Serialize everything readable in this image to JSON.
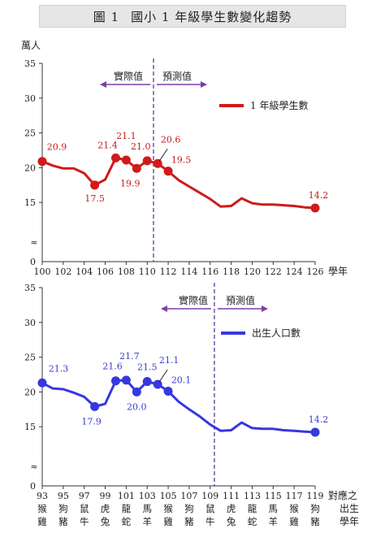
{
  "figure": {
    "number": "圖 1",
    "title": "國小 1 年級學生數變化趨勢"
  },
  "colors": {
    "red": "#d11a1a",
    "blue": "#3737e0",
    "divider": "#5b3a9a",
    "arrow": "#7a3fa8"
  },
  "chart_data": [
    {
      "type": "line",
      "ylabel": "萬人",
      "xlabel": "學年",
      "ylim": [
        10,
        35
      ],
      "yticks": [
        15,
        20,
        25,
        30,
        35
      ],
      "axis_break_symbol": "≈",
      "y_zero_label": "0",
      "xlim": [
        100,
        126
      ],
      "xticks": [
        100,
        102,
        104,
        106,
        108,
        110,
        112,
        114,
        116,
        118,
        120,
        122,
        124,
        126
      ],
      "divider_x": 110.6,
      "annotations": {
        "actual": "實際值",
        "forecast": "預測值"
      },
      "legend": {
        "label": "1 年級學生數",
        "position": "top-right"
      },
      "series": [
        {
          "name": "1 年級學生數",
          "x": [
            100,
            101,
            102,
            103,
            104,
            105,
            106,
            107,
            108,
            109,
            110,
            111,
            112,
            113,
            114,
            115,
            116,
            117,
            118,
            119,
            120,
            121,
            122,
            123,
            124,
            125,
            126
          ],
          "values": [
            20.9,
            20.3,
            19.9,
            19.9,
            19.2,
            17.5,
            18.3,
            21.4,
            21.1,
            19.9,
            21.0,
            20.6,
            19.5,
            18.2,
            17.3,
            16.4,
            15.5,
            14.4,
            14.5,
            15.6,
            14.9,
            14.7,
            14.7,
            14.6,
            14.5,
            14.3,
            14.2
          ],
          "markers": [
            100,
            105,
            107,
            108,
            109,
            110,
            111,
            112,
            126
          ],
          "labels": [
            {
              "x": 100,
              "text": "20.9"
            },
            {
              "x": 105,
              "text": "17.5"
            },
            {
              "x": 107,
              "text": "21.4"
            },
            {
              "x": 108,
              "text": "21.1"
            },
            {
              "x": 109,
              "text": "19.9"
            },
            {
              "x": 110,
              "text": "21.0"
            },
            {
              "x": 111,
              "text": "20.6"
            },
            {
              "x": 112,
              "text": "19.5"
            },
            {
              "x": 126,
              "text": "14.2"
            }
          ]
        }
      ]
    },
    {
      "type": "line",
      "ylabel": "",
      "xlabel": "對應之出生學年",
      "ylim": [
        10,
        35
      ],
      "yticks": [
        15,
        20,
        25,
        30,
        35
      ],
      "axis_break_symbol": "≈",
      "y_zero_label": "0",
      "xlim": [
        93,
        119
      ],
      "xticks": [
        93,
        95,
        97,
        99,
        101,
        103,
        105,
        107,
        109,
        111,
        113,
        115,
        117,
        119
      ],
      "zodiac": [
        [
          "猴",
          "雞"
        ],
        [
          "狗",
          "豬"
        ],
        [
          "鼠",
          "牛"
        ],
        [
          "虎",
          "兔"
        ],
        [
          "龍",
          "蛇"
        ],
        [
          "馬",
          "羊"
        ],
        [
          "猴",
          "雞"
        ],
        [
          "狗",
          "豬"
        ],
        [
          "鼠",
          "牛"
        ],
        [
          "虎",
          "兔"
        ],
        [
          "龍",
          "蛇"
        ],
        [
          "馬",
          "羊"
        ],
        [
          "猴",
          "雞"
        ],
        [
          "狗",
          "豬"
        ]
      ],
      "divider_x": 109.4,
      "annotations": {
        "actual": "實際值",
        "forecast": "預測值"
      },
      "legend": {
        "label": "出生人口數",
        "position": "top-right"
      },
      "series": [
        {
          "name": "出生人口數",
          "x": [
            93,
            94,
            95,
            96,
            97,
            98,
            99,
            100,
            101,
            102,
            103,
            104,
            105,
            106,
            107,
            108,
            109,
            110,
            111,
            112,
            113,
            114,
            115,
            116,
            117,
            118,
            119
          ],
          "values": [
            21.3,
            20.5,
            20.4,
            19.9,
            19.3,
            17.9,
            18.3,
            21.6,
            21.7,
            20.0,
            21.5,
            21.1,
            20.1,
            18.6,
            17.5,
            16.5,
            15.3,
            14.4,
            14.5,
            15.6,
            14.8,
            14.7,
            14.7,
            14.5,
            14.4,
            14.3,
            14.2
          ],
          "markers": [
            93,
            98,
            100,
            101,
            102,
            103,
            104,
            105,
            119
          ],
          "labels": [
            {
              "x": 93,
              "text": "21.3"
            },
            {
              "x": 98,
              "text": "17.9"
            },
            {
              "x": 100,
              "text": "21.6"
            },
            {
              "x": 101,
              "text": "21.7"
            },
            {
              "x": 102,
              "text": "20.0"
            },
            {
              "x": 103,
              "text": "21.5"
            },
            {
              "x": 104,
              "text": "21.1"
            },
            {
              "x": 105,
              "text": "20.1"
            },
            {
              "x": 119,
              "text": "14.2"
            }
          ]
        }
      ]
    }
  ]
}
